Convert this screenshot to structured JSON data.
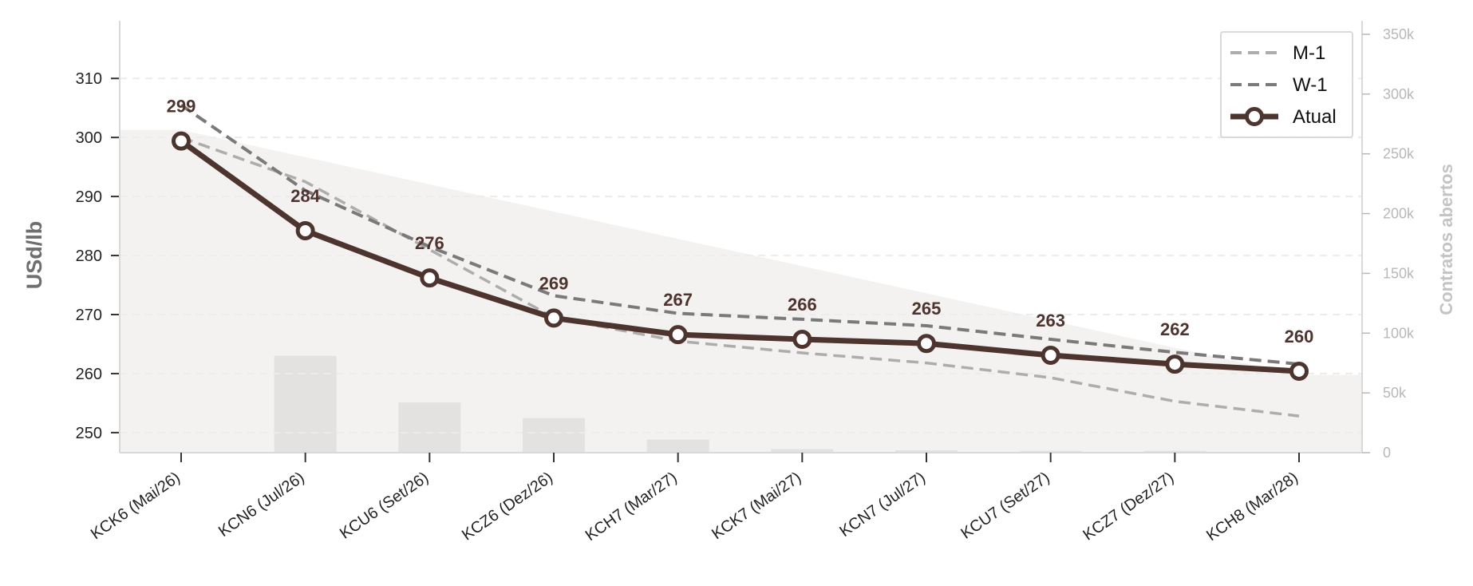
{
  "chart_data": {
    "type": "line",
    "categories": [
      "KCK6 (Mai/26)",
      "KCN6 (Jul/26)",
      "KCU6 (Set/26)",
      "KCZ6 (Dez/26)",
      "KCH7 (Mar/27)",
      "KCK7 (Mai/27)",
      "KCN7 (Jul/27)",
      "KCU7 (Set/27)",
      "KCZ7 (Dez/27)",
      "KCH8 (Mar/28)"
    ],
    "series": [
      {
        "name": "M-1",
        "values": [
          300,
          292.5,
          281,
          269.5,
          265.5,
          263.5,
          261.8,
          259.3,
          255.3,
          252.8
        ],
        "color": "#adadad",
        "style": "dashed"
      },
      {
        "name": "W-1",
        "values": [
          305.5,
          291,
          281.5,
          273.2,
          270.2,
          269.2,
          268.1,
          265.8,
          263.6,
          261.6
        ],
        "color": "#7a7a7a",
        "style": "dashed"
      },
      {
        "name": "Atual",
        "values": [
          299.4,
          284.2,
          276.2,
          269.4,
          266.6,
          265.8,
          265.1,
          263.1,
          261.6,
          260.4
        ],
        "color": "#4e342e",
        "style": "solid-markers"
      }
    ],
    "data_labels": [
      "299",
      "284",
      "276",
      "269",
      "267",
      "266",
      "265",
      "263",
      "262",
      "260"
    ],
    "open_interest": {
      "name": "Contratos abertos",
      "values": [
        270000,
        81000,
        42000,
        29000,
        11000,
        3000,
        2000,
        1500,
        1500,
        0
      ]
    },
    "ylabel": "USd/lb",
    "ylabel_right": "Contratos abertos",
    "ylim": [
      246.6,
      319.5
    ],
    "yticks": [
      250,
      260,
      270,
      280,
      290,
      300,
      310
    ],
    "ylim_right": [
      0,
      360000
    ],
    "yticks_right": [
      0,
      50000,
      100000,
      150000,
      200000,
      250000,
      300000,
      350000
    ],
    "yticklabels_right": [
      "0",
      "50k",
      "100k",
      "150k",
      "200k",
      "250k",
      "300k",
      "350k"
    ],
    "grid": "horizontal dashed",
    "legend_position": "top-right",
    "colors": {
      "area": "#f4f2f0",
      "bars": "#e4e2e0",
      "grid": "#ececec"
    }
  }
}
